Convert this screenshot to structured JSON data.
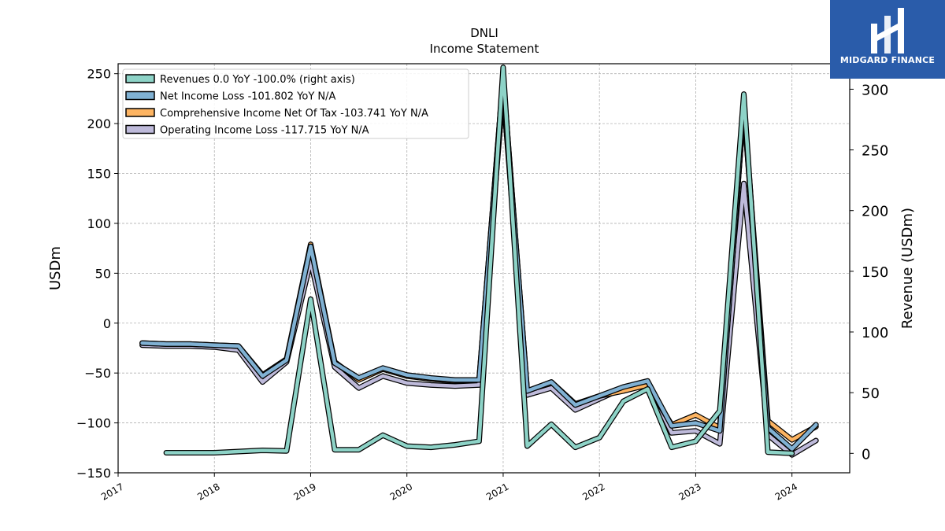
{
  "chart_data": {
    "type": "line",
    "title": "DNLI",
    "subtitle": "Income Statement",
    "ylabel": "USDm",
    "y2label": "Revenue (USDm)",
    "ylim": [
      -150,
      260
    ],
    "y2lim": [
      -16,
      321
    ],
    "xlim": [
      2017.0,
      2024.6
    ],
    "yticks": [
      250,
      200,
      150,
      100,
      50,
      0,
      -50,
      -100,
      -150
    ],
    "ytick_labels": [
      "250",
      "200",
      "150",
      "100",
      "50",
      "0",
      "−50",
      "−100",
      "−150"
    ],
    "y2ticks": [
      300,
      250,
      200,
      150,
      100,
      50,
      0
    ],
    "y2tick_labels": [
      "300",
      "250",
      "200",
      "150",
      "100",
      "50",
      "0"
    ],
    "xticks": [
      2017,
      2018,
      2019,
      2020,
      2021,
      2022,
      2023,
      2024
    ],
    "xtick_labels": [
      "2017",
      "2018",
      "2019",
      "2020",
      "2021",
      "2022",
      "2023",
      "2024"
    ],
    "grid": true,
    "legend_position": "top-left",
    "series": [
      {
        "name": "Revenues  0.0 YoY -100.0% (right axis)",
        "axis": "right",
        "color": "#8dd3c7",
        "x": [
          2017.5,
          2017.75,
          2018.0,
          2018.25,
          2018.5,
          2018.75,
          2019.0,
          2019.25,
          2019.5,
          2019.75,
          2020.0,
          2020.25,
          2020.5,
          2020.75,
          2021.0,
          2021.25,
          2021.5,
          2021.75,
          2022.0,
          2022.25,
          2022.5,
          2022.75,
          2023.0,
          2023.25,
          2023.5,
          2023.75,
          2024.0
        ],
        "values": [
          0.5,
          0.5,
          0.5,
          1.5,
          2.5,
          2.0,
          127,
          3,
          3,
          15,
          6,
          5,
          7,
          10,
          318,
          6,
          24,
          5,
          13,
          43,
          53,
          5,
          10,
          35,
          296,
          1,
          0
        ]
      },
      {
        "name": "Net Income Loss  -101.802 YoY N/A",
        "axis": "left",
        "color": "#80b1d3",
        "x": [
          2017.25,
          2017.5,
          2017.75,
          2018.0,
          2018.25,
          2018.5,
          2018.75,
          2019.0,
          2019.25,
          2019.5,
          2019.75,
          2020.0,
          2020.25,
          2020.5,
          2020.75,
          2021.0,
          2021.25,
          2021.5,
          2021.75,
          2022.0,
          2022.25,
          2022.5,
          2022.75,
          2023.0,
          2023.25,
          2023.5,
          2023.75,
          2024.0,
          2024.25
        ],
        "values": [
          -20,
          -21,
          -21,
          -22,
          -23,
          -53,
          -37,
          77,
          -40,
          -55,
          -45,
          -52,
          -55,
          -57,
          -57,
          246,
          -68,
          -59,
          -82,
          -73,
          -64,
          -58,
          -103,
          -100,
          -108,
          218,
          -105,
          -126,
          -101.8
        ]
      },
      {
        "name": "Comprehensive Income Net Of Tax  -103.741 YoY N/A",
        "axis": "left",
        "color": "#fdb462",
        "x": [
          2017.25,
          2017.5,
          2017.75,
          2018.0,
          2018.25,
          2018.5,
          2018.75,
          2019.0,
          2019.25,
          2019.5,
          2019.75,
          2020.0,
          2020.25,
          2020.5,
          2020.75,
          2021.0,
          2021.25,
          2021.5,
          2021.75,
          2022.0,
          2022.25,
          2022.5,
          2022.75,
          2023.0,
          2023.25,
          2023.5,
          2023.75,
          2024.0,
          2024.25
        ],
        "values": [
          -20,
          -21,
          -21,
          -22,
          -23,
          -52,
          -36,
          79,
          -39,
          -57,
          -46,
          -53,
          -56,
          -58,
          -57,
          246,
          -68,
          -59,
          -81,
          -73,
          -68,
          -62,
          -102,
          -92,
          -105,
          218,
          -98,
          -117,
          -103.7
        ]
      },
      {
        "name": "Operating Income Loss  -117.715 YoY N/A",
        "axis": "left",
        "color": "#bebada",
        "x": [
          2017.25,
          2017.5,
          2017.75,
          2018.0,
          2018.25,
          2018.5,
          2018.75,
          2019.0,
          2019.25,
          2019.5,
          2019.75,
          2020.0,
          2020.25,
          2020.5,
          2020.75,
          2021.0,
          2021.25,
          2021.5,
          2021.75,
          2022.0,
          2022.25,
          2022.5,
          2022.75,
          2023.0,
          2023.25,
          2023.5,
          2023.75,
          2024.0,
          2024.25
        ],
        "values": [
          -22,
          -23,
          -23,
          -24,
          -27,
          -59,
          -39,
          62,
          -44,
          -65,
          -53,
          -60,
          -62,
          -63,
          -62,
          233,
          -72,
          -65,
          -87,
          -76,
          -65,
          -60,
          -110,
          -108,
          -121,
          140,
          -112,
          -132,
          -117.7
        ]
      }
    ]
  },
  "logo": {
    "text": "MIDGARD FINANCE",
    "color": "#2a5caa"
  }
}
